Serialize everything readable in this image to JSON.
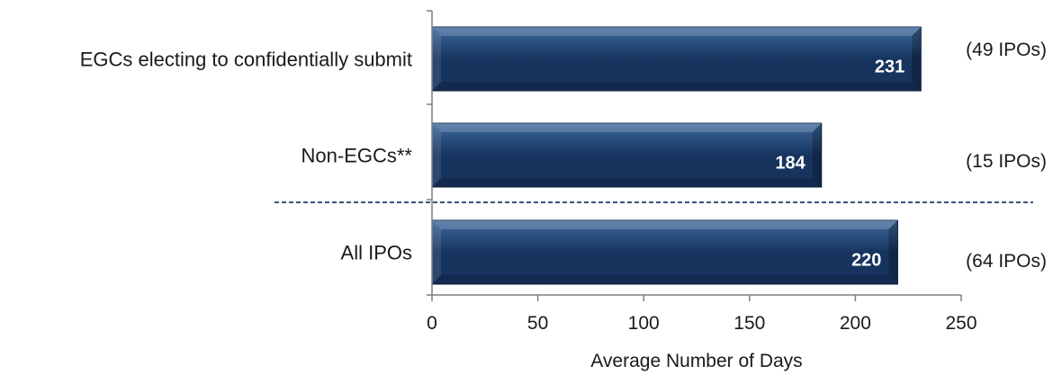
{
  "chart_data": {
    "type": "bar",
    "orientation": "horizontal",
    "categories": [
      "EGCs electing to confidentially submit",
      "Non-EGCs**",
      "All IPOs"
    ],
    "values": [
      231,
      184,
      220
    ],
    "value_labels": [
      "231",
      "184",
      "220"
    ],
    "annotations": [
      "(49 IPOs)",
      "(15 IPOs)",
      "(64 IPOs)"
    ],
    "xlabel": "Average Number of Days",
    "ylabel": "",
    "title": "",
    "xlim": [
      0,
      250
    ],
    "xticks": [
      0,
      50,
      100,
      150,
      200,
      250
    ],
    "grid": false,
    "separator": "dashed line between Non-EGCs** and All IPOs",
    "colors": {
      "bar_dark": "#16345e",
      "bar_light": "#3f6a9e",
      "bar_edge": "#0f2747",
      "separator": "#1f3a68",
      "axis": "#7f7f7f"
    }
  }
}
